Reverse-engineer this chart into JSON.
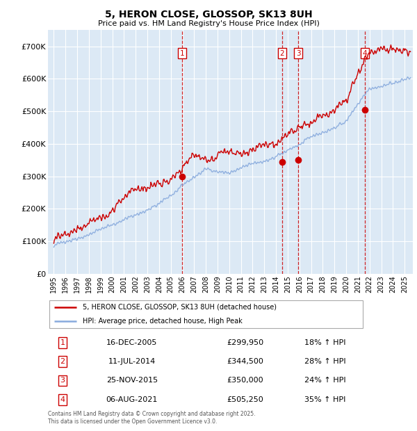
{
  "title": "5, HERON CLOSE, GLOSSOP, SK13 8UH",
  "subtitle": "Price paid vs. HM Land Registry's House Price Index (HPI)",
  "ylim": [
    0,
    750000
  ],
  "yticks": [
    0,
    100000,
    200000,
    300000,
    400000,
    500000,
    600000,
    700000
  ],
  "ytick_labels": [
    "£0",
    "£100K",
    "£200K",
    "£300K",
    "£400K",
    "£500K",
    "£600K",
    "£700K"
  ],
  "xlim_start": 1994.5,
  "xlim_end": 2025.7,
  "background_color": "#dce9f5",
  "grid_color": "#ffffff",
  "red_line_color": "#cc0000",
  "blue_line_color": "#88aadd",
  "transaction_color": "#cc0000",
  "transactions": [
    {
      "num": 1,
      "date": "16-DEC-2005",
      "price": 299950,
      "pct": "18%",
      "x_year": 2005.96
    },
    {
      "num": 2,
      "date": "11-JUL-2014",
      "price": 344500,
      "pct": "28%",
      "x_year": 2014.53
    },
    {
      "num": 3,
      "date": "25-NOV-2015",
      "price": 350000,
      "pct": "24%",
      "x_year": 2015.9
    },
    {
      "num": 4,
      "date": "06-AUG-2021",
      "price": 505250,
      "pct": "35%",
      "x_year": 2021.59
    }
  ],
  "legend_line1": "5, HERON CLOSE, GLOSSOP, SK13 8UH (detached house)",
  "legend_line2": "HPI: Average price, detached house, High Peak",
  "footer": "Contains HM Land Registry data © Crown copyright and database right 2025.\nThis data is licensed under the Open Government Licence v3.0.",
  "x_ticks": [
    1995,
    1996,
    1997,
    1998,
    1999,
    2000,
    2001,
    2002,
    2003,
    2004,
    2005,
    2006,
    2007,
    2008,
    2009,
    2010,
    2011,
    2012,
    2013,
    2014,
    2015,
    2016,
    2017,
    2018,
    2019,
    2020,
    2021,
    2022,
    2023,
    2024,
    2025
  ]
}
